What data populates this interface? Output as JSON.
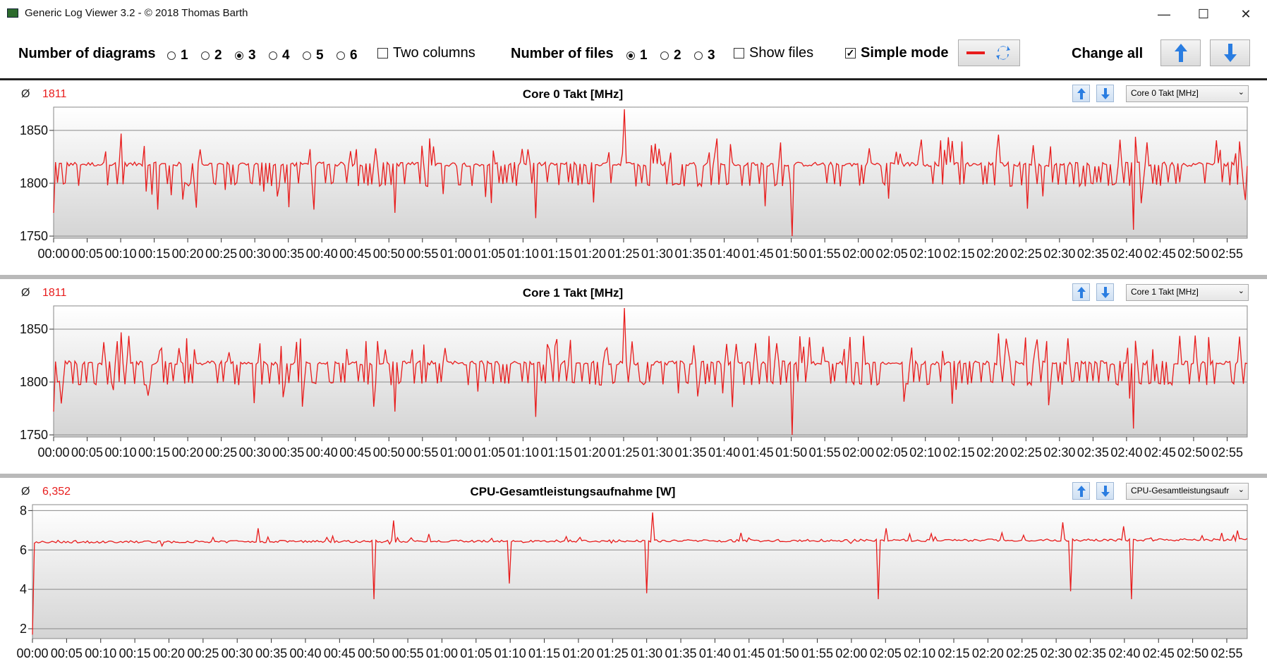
{
  "window": {
    "title": "Generic Log Viewer 3.2 - © 2018 Thomas Barth",
    "minimize": "—",
    "maximize": "☐",
    "close": "✕"
  },
  "toolbar": {
    "num_diagrams_label": "Number of diagrams",
    "diagram_options": [
      "1",
      "2",
      "3",
      "4",
      "5",
      "6"
    ],
    "diagram_selected": "3",
    "two_columns_label": "Two columns",
    "two_columns_checked": false,
    "num_files_label": "Number of files",
    "file_options": [
      "1",
      "2",
      "3"
    ],
    "file_selected": "1",
    "show_files_label": "Show files",
    "show_files_checked": false,
    "simple_mode_label": "Simple mode",
    "simple_mode_checked": true,
    "change_all_label": "Change all"
  },
  "colors": {
    "series": "#e81c1c",
    "accent": "#2a7de1"
  },
  "x_ticks": [
    "00:00",
    "00:05",
    "00:10",
    "00:15",
    "00:20",
    "00:25",
    "00:30",
    "00:35",
    "00:40",
    "00:45",
    "00:50",
    "00:55",
    "01:00",
    "01:05",
    "01:10",
    "01:15",
    "01:20",
    "01:25",
    "01:30",
    "01:35",
    "01:40",
    "01:45",
    "01:50",
    "01:55",
    "02:00",
    "02:05",
    "02:10",
    "02:15",
    "02:20",
    "02:25",
    "02:30",
    "02:35",
    "02:40",
    "02:45",
    "02:50",
    "02:55"
  ],
  "panels": [
    {
      "avg_symbol": "Ø",
      "avg_value": "1811",
      "title": "Core 0 Takt [MHz]",
      "selector": "Core 0 Takt [MHz]",
      "y_ticks": [
        "1850",
        "1800",
        "1750"
      ]
    },
    {
      "avg_symbol": "Ø",
      "avg_value": "1811",
      "title": "Core 1 Takt [MHz]",
      "selector": "Core 1 Takt [MHz]",
      "y_ticks": [
        "1850",
        "1800",
        "1750"
      ]
    },
    {
      "avg_symbol": "Ø",
      "avg_value": "6,352",
      "title": "CPU-Gesamtleistungsaufnahme [W]",
      "selector": "CPU-Gesamtleistungsaufr",
      "y_ticks": [
        "8",
        "6",
        "4",
        "2"
      ]
    }
  ],
  "chart_data": [
    {
      "type": "line",
      "title": "Core 0 Takt [MHz]",
      "ylim": [
        1748,
        1872
      ],
      "x_range": [
        "00:00",
        "02:58"
      ],
      "grid": true,
      "series": [
        {
          "name": "Core 0 Takt [MHz]",
          "baseline": 1818,
          "mean": 1811
        }
      ],
      "spikes_up": [
        {
          "x": "01:25",
          "y": 1870
        },
        {
          "x": "00:10",
          "y": 1847
        },
        {
          "x": "02:21",
          "y": 1846
        }
      ],
      "spikes_down": [
        {
          "x": "01:50",
          "y": 1750
        },
        {
          "x": "02:41",
          "y": 1756
        },
        {
          "x": "01:12",
          "y": 1767
        },
        {
          "x": "00:51",
          "y": 1772
        },
        {
          "x": "00:00",
          "y": 1772
        }
      ]
    },
    {
      "type": "line",
      "title": "Core 1 Takt [MHz]",
      "ylim": [
        1748,
        1872
      ],
      "x_range": [
        "00:00",
        "02:58"
      ],
      "grid": true,
      "series": [
        {
          "name": "Core 1 Takt [MHz]",
          "baseline": 1818,
          "mean": 1811
        }
      ],
      "spikes_up": [
        {
          "x": "01:25",
          "y": 1870
        },
        {
          "x": "00:10",
          "y": 1847
        },
        {
          "x": "02:21",
          "y": 1846
        }
      ],
      "spikes_down": [
        {
          "x": "01:50",
          "y": 1750
        },
        {
          "x": "02:41",
          "y": 1756
        },
        {
          "x": "01:12",
          "y": 1767
        },
        {
          "x": "00:51",
          "y": 1772
        },
        {
          "x": "00:00",
          "y": 1772
        }
      ]
    },
    {
      "type": "line",
      "title": "CPU-Gesamtleistungsaufnahme [W]",
      "ylim": [
        1.5,
        8.3
      ],
      "x_range": [
        "00:00",
        "02:58"
      ],
      "grid": true,
      "series": [
        {
          "name": "CPU-Gesamtleistungsaufnahme [W]",
          "baseline": 6.4,
          "mean": 6.352
        }
      ],
      "spikes_up": [
        {
          "x": "01:31",
          "y": 7.9
        },
        {
          "x": "00:53",
          "y": 7.5
        },
        {
          "x": "02:31",
          "y": 7.4
        },
        {
          "x": "00:33",
          "y": 7.1
        },
        {
          "x": "02:05",
          "y": 7.1
        },
        {
          "x": "02:40",
          "y": 7.2
        }
      ],
      "spikes_down": [
        {
          "x": "00:00",
          "y": 1.7
        },
        {
          "x": "00:50",
          "y": 3.5
        },
        {
          "x": "01:10",
          "y": 4.3
        },
        {
          "x": "01:30",
          "y": 3.8
        },
        {
          "x": "02:04",
          "y": 3.5
        },
        {
          "x": "02:32",
          "y": 3.9
        },
        {
          "x": "02:41",
          "y": 3.5
        }
      ]
    }
  ]
}
